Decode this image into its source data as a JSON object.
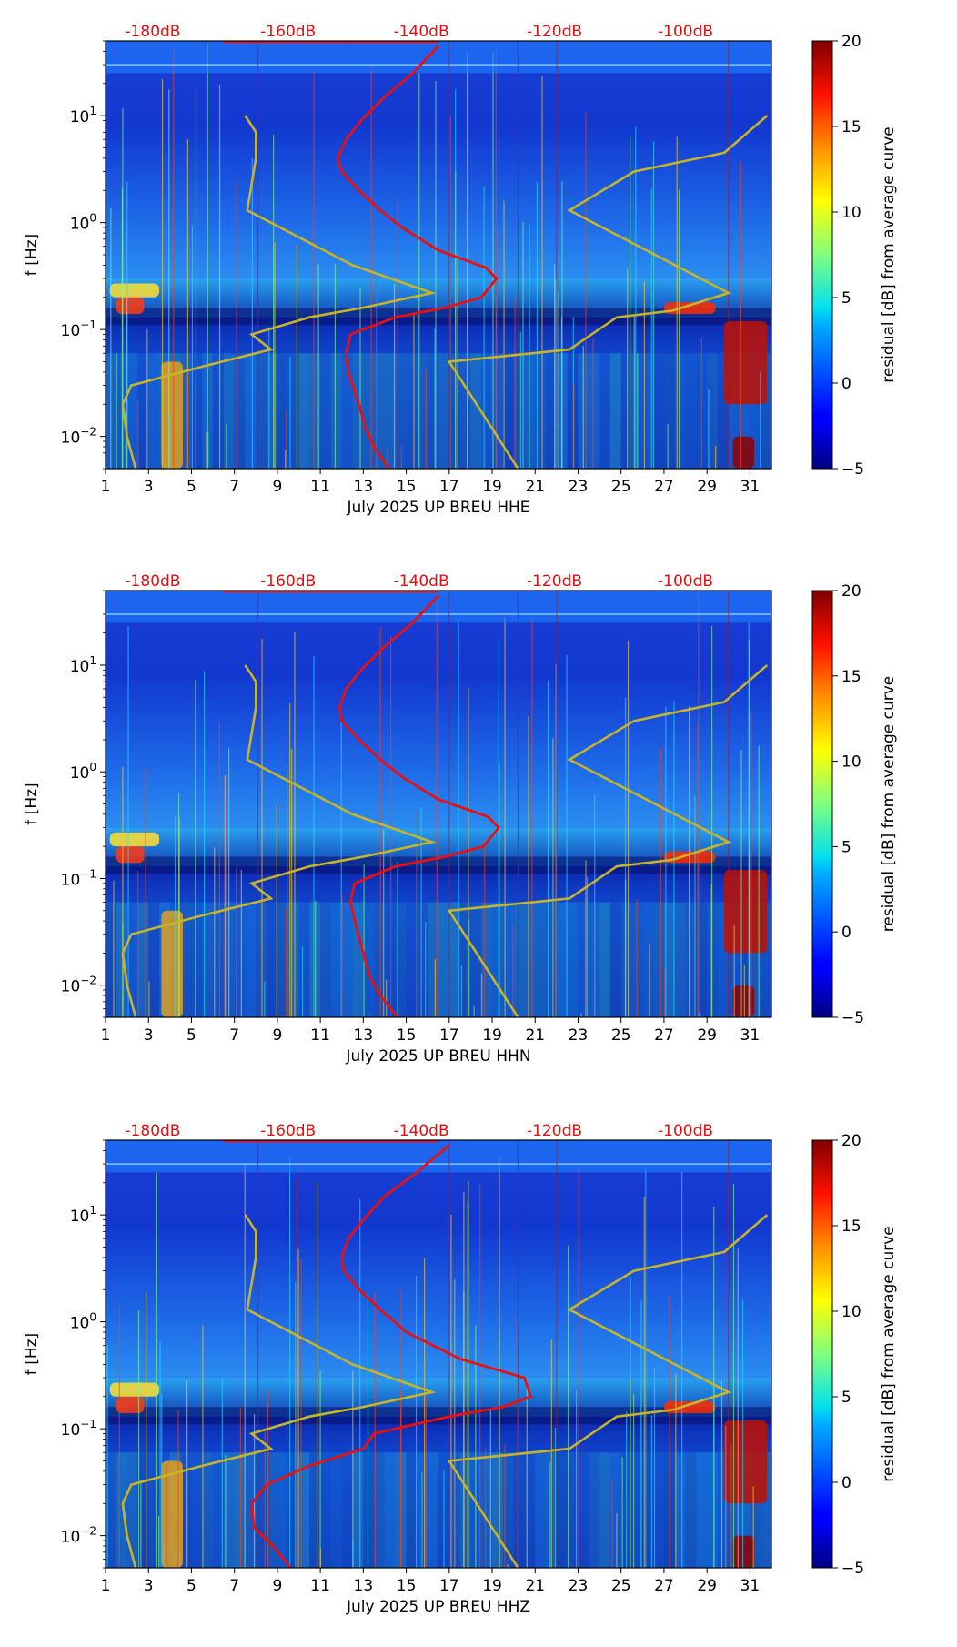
{
  "chart_data": [
    {
      "type": "heatmap",
      "channel": "HHE",
      "xlabel": "July 2025 UP BREU  HHE",
      "ylabel": "f [Hz]",
      "x_ticks": [
        "1",
        "3",
        "5",
        "7",
        "9",
        "11",
        "13",
        "15",
        "17",
        "19",
        "21",
        "23",
        "25",
        "27",
        "29",
        "31"
      ],
      "y_ticks": [
        {
          "base": "10",
          "exp": "1",
          "value": 10
        },
        {
          "base": "10",
          "exp": "0",
          "value": 1
        },
        {
          "base": "10",
          "exp": "−1",
          "value": 0.1
        },
        {
          "base": "10",
          "exp": "−2",
          "value": 0.01
        }
      ],
      "ylim_hz": [
        0.005,
        50
      ],
      "xlim_day": [
        1,
        32
      ],
      "top_db_labels": [
        "-180dB",
        "-160dB",
        "-140dB",
        "-120dB",
        "-100dB"
      ],
      "colorbar": {
        "label": "residual [dB] from average curve",
        "ticks": [
          "20",
          "15",
          "10",
          "5",
          "0",
          "−5"
        ],
        "vmin": -5,
        "vmax": 20
      },
      "red_curve": [
        [
          14.2,
          0.005
        ],
        [
          13.5,
          0.008
        ],
        [
          13.1,
          0.012
        ],
        [
          12.8,
          0.02
        ],
        [
          12.3,
          0.04
        ],
        [
          12.2,
          0.06
        ],
        [
          12.4,
          0.09
        ],
        [
          14.5,
          0.13
        ],
        [
          16.8,
          0.16
        ],
        [
          18.5,
          0.2
        ],
        [
          19.2,
          0.3
        ],
        [
          18.7,
          0.38
        ],
        [
          16.5,
          0.55
        ],
        [
          14.8,
          0.9
        ],
        [
          13.8,
          1.3
        ],
        [
          12.8,
          2
        ],
        [
          12.0,
          3
        ],
        [
          11.8,
          4
        ],
        [
          12.2,
          6
        ],
        [
          12.9,
          9
        ],
        [
          14.0,
          15
        ],
        [
          15.3,
          25
        ],
        [
          16.5,
          45
        ]
      ],
      "yellow_low": [
        [
          2.4,
          0.005
        ],
        [
          2.0,
          0.01
        ],
        [
          1.8,
          0.02
        ],
        [
          2.2,
          0.03
        ],
        [
          5.5,
          0.045
        ],
        [
          8.7,
          0.065
        ],
        [
          7.8,
          0.09
        ],
        [
          10.5,
          0.13
        ],
        [
          13.0,
          0.16
        ],
        [
          16.2,
          0.22
        ],
        [
          12.5,
          0.4
        ],
        [
          7.6,
          1.3
        ],
        [
          8.0,
          4
        ],
        [
          8.0,
          7
        ],
        [
          7.5,
          10
        ]
      ],
      "yellow_high": [
        [
          20.2,
          0.005
        ],
        [
          17.0,
          0.05
        ],
        [
          22.6,
          0.065
        ],
        [
          24.8,
          0.13
        ],
        [
          27.4,
          0.15
        ],
        [
          30.0,
          0.22
        ],
        [
          22.6,
          1.3
        ],
        [
          25.6,
          3
        ],
        [
          29.8,
          4.5
        ],
        [
          31.8,
          10
        ]
      ]
    },
    {
      "type": "heatmap",
      "channel": "HHN",
      "xlabel": "July 2025 UP BREU  HHN",
      "ylabel": "f [Hz]",
      "x_ticks": [
        "1",
        "3",
        "5",
        "7",
        "9",
        "11",
        "13",
        "15",
        "17",
        "19",
        "21",
        "23",
        "25",
        "27",
        "29",
        "31"
      ],
      "y_ticks": [
        {
          "base": "10",
          "exp": "1",
          "value": 10
        },
        {
          "base": "10",
          "exp": "0",
          "value": 1
        },
        {
          "base": "10",
          "exp": "−1",
          "value": 0.1
        },
        {
          "base": "10",
          "exp": "−2",
          "value": 0.01
        }
      ],
      "ylim_hz": [
        0.005,
        50
      ],
      "xlim_day": [
        1,
        32
      ],
      "top_db_labels": [
        "-180dB",
        "-160dB",
        "-140dB",
        "-120dB",
        "-100dB"
      ],
      "colorbar": {
        "label": "residual [dB] from average curve",
        "ticks": [
          "20",
          "15",
          "10",
          "5",
          "0",
          "−5"
        ],
        "vmin": -5,
        "vmax": 20
      },
      "red_curve": [
        [
          14.6,
          0.005
        ],
        [
          13.8,
          0.008
        ],
        [
          13.3,
          0.012
        ],
        [
          13.0,
          0.02
        ],
        [
          12.6,
          0.04
        ],
        [
          12.4,
          0.06
        ],
        [
          12.6,
          0.09
        ],
        [
          14.5,
          0.13
        ],
        [
          16.8,
          0.16
        ],
        [
          18.6,
          0.2
        ],
        [
          19.3,
          0.3
        ],
        [
          18.8,
          0.38
        ],
        [
          16.5,
          0.55
        ],
        [
          14.8,
          0.9
        ],
        [
          13.8,
          1.3
        ],
        [
          12.8,
          2
        ],
        [
          12.0,
          3
        ],
        [
          11.9,
          4
        ],
        [
          12.2,
          6
        ],
        [
          12.9,
          9
        ],
        [
          14.0,
          15
        ],
        [
          15.3,
          25
        ],
        [
          16.5,
          45
        ]
      ],
      "yellow_low": [
        [
          2.4,
          0.005
        ],
        [
          2.0,
          0.01
        ],
        [
          1.8,
          0.02
        ],
        [
          2.2,
          0.03
        ],
        [
          5.5,
          0.045
        ],
        [
          8.7,
          0.065
        ],
        [
          7.8,
          0.09
        ],
        [
          10.5,
          0.13
        ],
        [
          13.0,
          0.16
        ],
        [
          16.2,
          0.22
        ],
        [
          12.5,
          0.4
        ],
        [
          7.6,
          1.3
        ],
        [
          8.0,
          4
        ],
        [
          8.0,
          7
        ],
        [
          7.5,
          10
        ]
      ],
      "yellow_high": [
        [
          20.2,
          0.005
        ],
        [
          17.0,
          0.05
        ],
        [
          22.6,
          0.065
        ],
        [
          24.8,
          0.13
        ],
        [
          27.4,
          0.15
        ],
        [
          30.0,
          0.22
        ],
        [
          22.6,
          1.3
        ],
        [
          25.6,
          3
        ],
        [
          29.8,
          4.5
        ],
        [
          31.8,
          10
        ]
      ]
    },
    {
      "type": "heatmap",
      "channel": "HHZ",
      "xlabel": "July 2025 UP BREU  HHZ",
      "ylabel": "f [Hz]",
      "x_ticks": [
        "1",
        "3",
        "5",
        "7",
        "9",
        "11",
        "13",
        "15",
        "17",
        "19",
        "21",
        "23",
        "25",
        "27",
        "29",
        "31"
      ],
      "y_ticks": [
        {
          "base": "10",
          "exp": "1",
          "value": 10
        },
        {
          "base": "10",
          "exp": "0",
          "value": 1
        },
        {
          "base": "10",
          "exp": "−1",
          "value": 0.1
        },
        {
          "base": "10",
          "exp": "−2",
          "value": 0.01
        }
      ],
      "ylim_hz": [
        0.005,
        50
      ],
      "xlim_day": [
        1,
        32
      ],
      "top_db_labels": [
        "-180dB",
        "-160dB",
        "-140dB",
        "-120dB",
        "-100dB"
      ],
      "colorbar": {
        "label": "residual [dB] from average curve",
        "ticks": [
          "20",
          "15",
          "10",
          "5",
          "0",
          "−5"
        ],
        "vmin": -5,
        "vmax": 20
      },
      "red_curve": [
        [
          9.6,
          0.005
        ],
        [
          8.8,
          0.008
        ],
        [
          7.9,
          0.012
        ],
        [
          7.8,
          0.02
        ],
        [
          8.5,
          0.03
        ],
        [
          10.5,
          0.045
        ],
        [
          13.0,
          0.065
        ],
        [
          13.5,
          0.09
        ],
        [
          17.0,
          0.13
        ],
        [
          19.5,
          0.16
        ],
        [
          20.8,
          0.2
        ],
        [
          20.5,
          0.3
        ],
        [
          17.5,
          0.45
        ],
        [
          15.0,
          0.8
        ],
        [
          13.8,
          1.3
        ],
        [
          12.8,
          2
        ],
        [
          12.1,
          3
        ],
        [
          12.0,
          4
        ],
        [
          12.3,
          6
        ],
        [
          13.0,
          9
        ],
        [
          14.0,
          15
        ],
        [
          15.5,
          25
        ],
        [
          17.0,
          45
        ]
      ],
      "yellow_low": [
        [
          2.4,
          0.005
        ],
        [
          2.0,
          0.01
        ],
        [
          1.8,
          0.02
        ],
        [
          2.2,
          0.03
        ],
        [
          5.5,
          0.045
        ],
        [
          8.7,
          0.065
        ],
        [
          7.8,
          0.09
        ],
        [
          10.5,
          0.13
        ],
        [
          13.0,
          0.16
        ],
        [
          16.2,
          0.22
        ],
        [
          12.5,
          0.4
        ],
        [
          7.6,
          1.3
        ],
        [
          8.0,
          4
        ],
        [
          8.0,
          7
        ],
        [
          7.5,
          10
        ]
      ],
      "yellow_high": [
        [
          20.2,
          0.005
        ],
        [
          17.0,
          0.05
        ],
        [
          22.6,
          0.065
        ],
        [
          24.8,
          0.13
        ],
        [
          27.4,
          0.15
        ],
        [
          30.0,
          0.22
        ],
        [
          22.6,
          1.3
        ],
        [
          25.6,
          3
        ],
        [
          29.8,
          4.5
        ],
        [
          31.8,
          10
        ]
      ]
    }
  ]
}
